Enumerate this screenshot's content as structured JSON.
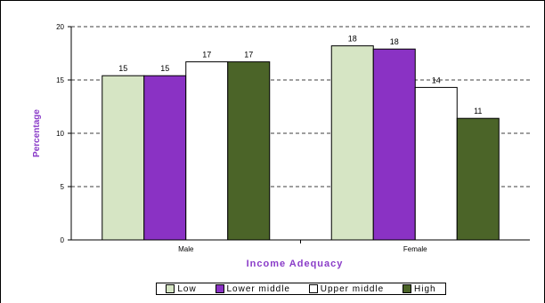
{
  "chart_data": {
    "type": "bar",
    "categories": [
      "Male",
      "Female"
    ],
    "series": [
      {
        "name": "Low",
        "values": [
          15.4,
          18.2
        ],
        "labels": [
          "15",
          "18"
        ],
        "color": "#d6e5c4"
      },
      {
        "name": "Lower middle",
        "values": [
          15.4,
          17.9
        ],
        "labels": [
          "15",
          "18"
        ],
        "color": "#8a32c4"
      },
      {
        "name": "Upper middle",
        "values": [
          16.7,
          14.3
        ],
        "labels": [
          "17",
          "14"
        ],
        "color": "#ffffff"
      },
      {
        "name": "High",
        "values": [
          16.7,
          11.4
        ],
        "labels": [
          "17",
          "11"
        ],
        "color": "#4b6428"
      }
    ],
    "xlabel": "Income Adequacy",
    "ylabel": "Percentage",
    "ylim": [
      0,
      20
    ],
    "yticks": [
      0,
      5,
      10,
      15,
      20
    ],
    "grid": "horizontal dashed",
    "legend_position": "bottom"
  }
}
